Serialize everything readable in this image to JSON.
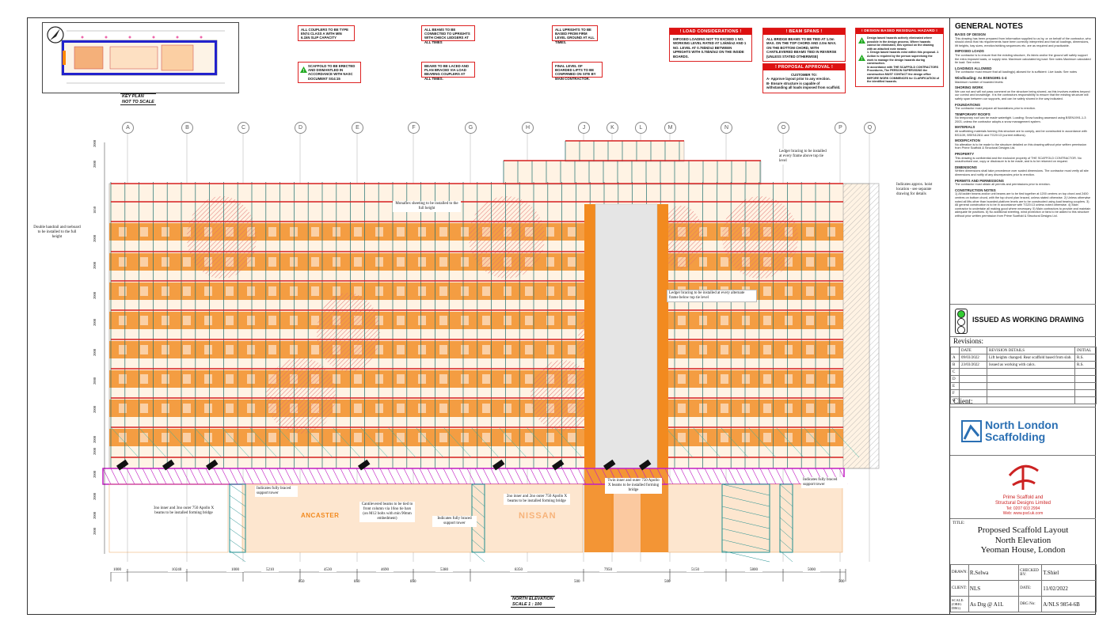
{
  "key_plan": {
    "label1": "KEY PLAN",
    "label2": "NOT TO SCALE"
  },
  "notes_red": [
    "ALL COUPLERS TO BE TYPE EN74 CLASS A WITH MIN 6.1kN SLIP CAPACITY",
    "ALL BEAMS TO BE CONNECTED TO UPRIGHTS WITH CHECK LEDGERS AT ALL TIMES",
    "ALL UPRIGHTS TO BE BASED FROM FIRM LEVEL GROUND AT ALL TIMES.",
    "BEAMS TO BE LACED AND PLAN BRACED VIA LOAD BEARING COUPLERS AT ALL TIMES.",
    "FINAL LEVEL OF BOARDED LIFTS TO BE CONFIRMED ON SITE BY MAIN CONTRACTOR."
  ],
  "note_naasc": "SCAFFOLD TO BE ERECTED AND DISMANTLED IN ACCORDANCE WITH NASC DOCUMENT SG4:15",
  "load": {
    "title": "! LOAD CONSIDERATIONS !",
    "body": "IMPOSED LOADING NOT TO EXCEED 1 NO. WORKING LEVEL RATED AT 1.5kN/m2 AND 1 NO. LEVEL AT 0.75kN/m2 BETWEEN UPRIGHTS WITH 0.75kN/m2 ON THE INSIDE BOARDS."
  },
  "beam": {
    "title": "! BEAM SPANS !",
    "body": "ALL BRIDGE BEAMS TO BE TIED AT 1.0m MAX. ON THE TOP CHORD AND 2.0m MAX. ON THE BOTTOM CHORD, WITH CANTILEVERED BEAMS TIED IN REVERSE (UNLESS STATED OTHERWISE)"
  },
  "approval": {
    "title": "! PROPOSAL APPROVAL !",
    "customer": "CUSTOMER TO:",
    "a": "A-  Approve layout prior to any erection.",
    "b": "B-  Ensure structure is capable of withstanding all loads imposed from scaffold."
  },
  "hazard": {
    "title": "! DESIGN BASED RESIDUAL HAZARD !",
    "p1": "Design based hazards actively eliminated where possible in the design process. Where hazards cannot be eliminated, this symbol on the drawing with an attached note means:",
    "p2": "1. Design based hazards exist within this proposal. 2. Action is required by the person supervising the work to manage the design hazards during construction.",
    "p3": "In accordance with THE SCAFFOLD CONTRACTORS Procedures, The PERSON SUPERVISING the construction MUST CONTACT the design office BEFORE WORK COMMENCES for CLARIFICATION of the identified hazards."
  },
  "grid": [
    "A",
    "B",
    "C",
    "D",
    "E",
    "F",
    "G",
    "H",
    "J",
    "K",
    "L",
    "M",
    "N",
    "O",
    "P",
    "Q"
  ],
  "dims": [
    "1000",
    "10240",
    "1000",
    "5210",
    "4530",
    "4690",
    "5380",
    "8350",
    "7950",
    "5150",
    "5800",
    "5000"
  ],
  "subdims": [
    "850",
    "850",
    "850",
    "500",
    "500",
    "500"
  ],
  "lift_heights": [
    "2000",
    "2000",
    "1850",
    "2000",
    "2000",
    "2000",
    "2000",
    "2000",
    "2000",
    "2000",
    "2000",
    "2000",
    "2000",
    "2000",
    "2000",
    "2000"
  ],
  "beam_tags": [
    "PR",
    "PR",
    "PR",
    "PR",
    "PR",
    "PR",
    "PR",
    "PR"
  ],
  "shop": {
    "ancaster": "ANCASTER",
    "nissan": "NISSAN"
  },
  "annotations": {
    "ledger_top": "Ledger bracing to be installed at every frame above top tie level",
    "hoist": "Indicates approx. hoist location - see separate drawing for details",
    "monaflex": "Monaflex sheeting to be installed to the full height",
    "handrail": "Double handrail and toeboard to be installed to the full height",
    "ledger_mid": "Ledger bracing to be installed at every alternate frame below top tie level",
    "tower_left": "Indicates fully braced support tower",
    "beams_left": "3no inner and 3no outer 750 Apollo X beams to be installed forming bridge",
    "cantilever": "Cantilevered beams to be tied to front column via 16no tie bars (on M12 bolts with min 90mm embedment)",
    "tower_mid": "Indicates fully braced support tower",
    "beams_mid": "2no inner and 2no outer 750 Apollo X beams to be installed forming bridge",
    "beams_twin": "Twin inner and outer 750 Apollo X beams to be installed forming bridge",
    "tower_right": "Indicates fully braced support tower"
  },
  "elev_title": "NORTH ELEVATION",
  "elev_scale": "SCALE  1 : 100",
  "general_notes": {
    "title": "GENERAL NOTES",
    "sections": [
      {
        "h": "BASIS OF DESIGN",
        "t": "This drawing has been prepared from information supplied to us by, or on behalf of the contractor, who should check that his requirements have been correctly interpreted and that all loadings, dimensions, lift heights, bay sizes, erection/striking sequences etc. are as required and practicable."
      },
      {
        "h": "IMPOSED LOADS",
        "t": "The contractor is to ensure that the existing structure, it's fabric and/or the ground will safely support the extra imposed loads, or supply new. Maximum calculated leg load:  See notes   Maximum calculated tie load:  See notes"
      },
      {
        "h": "LOADINGS ALLOWED",
        "t": "The contractor must ensure that all loading(s) allowed for is sufficient: Live loads:  See notes"
      },
      {
        "h": "Windloading: As BSEN1991-1-4",
        "t": "Maximum number of boarded levels:"
      },
      {
        "h": "SHORING WORK",
        "t": "We can not and will not pass comment on the structure being shored, as this involves matters beyond our control and knowledge. It is the contractors responsibility to ensure that the existing structure will safely span between our supports, and can be safely shored in the way indicated."
      },
      {
        "h": "FOUNDATIONS",
        "t": "The contractor must prepare all foundations prior to erection."
      },
      {
        "h": "TEMPORARY ROOFS",
        "t": "No temporary roof can be made watertight. Loading: Snow loading assessed using BSEN1991-1-3 2003, unless the contractor adopts a snow management system."
      },
      {
        "h": "MATERIALS",
        "t": "All scaffolding materials forming this structure are to comply, and be constructed in accordance with BS1139, BSEN12811 and TG20:13 (current editions)."
      },
      {
        "h": "MODIFICATION",
        "t": "No alteration is to be made to the structure detailed on this drawing without prior written permission from Prime Scaffold & Structural Designs Ltd."
      },
      {
        "h": "PROPERTY",
        "t": "This drawing is confidential and the exclusive property of THE SCAFFOLD CONTRACTOR. No unauthorised use, copy or disclosure is to be made, and is to be returned on request."
      },
      {
        "h": "DIMENSIONS",
        "t": "Written dimensions shall take precedence over scaled dimensions. The contractor must verify all site dimensions and notify of any discrepancies prior to erection."
      },
      {
        "h": "PERMITS AND PERMISSIONS",
        "t": "The contractor must obtain all permits and permissions prior to erection."
      },
      {
        "h": "CONSTRUCTION NOTES",
        "t": "1) All ladder beams and/or unit beams are to be tied together at 1200 centres on top chord and 2400 centres on bottom chord, with the top chord plan braced, unless stated otherwise. 2) Unless otherwise noted all lifts other than boarded platform levels are to be constructed using load bearing couplers. 3) All general construction is to be in accordance with TG20:13 unless noted otherwise. 4) Main contractor to undertake all making good where necessary. 5) Main contractors to provide and maintain adequate tie positions. 6) No additional sheeting, wind protection or fans to be added to this structure without prior written permission from Prime Scaffold & Structural Designs Ltd."
      }
    ]
  },
  "status": "ISSUED AS WORKING DRAWING",
  "revisions": {
    "title": "Revisions:",
    "headers": [
      "",
      "DATE",
      "REVISION DETAILS",
      "INITIAL"
    ],
    "rows": [
      [
        "A",
        "09/03/2022",
        "Lift heights changed. Rear scaffold based from slab.",
        "R.S."
      ],
      [
        "B",
        "23/03/2022",
        "Issued as working with calcs.",
        "R.S."
      ],
      [
        "C",
        "",
        "",
        ""
      ],
      [
        "D",
        "",
        "",
        ""
      ],
      [
        "E",
        "",
        "",
        ""
      ],
      [
        "F",
        "",
        "",
        ""
      ],
      [
        "G",
        "",
        "",
        ""
      ]
    ]
  },
  "client_label": "Client:",
  "client_logo": {
    "line1": "North London",
    "line2": "Scaffolding"
  },
  "designer": {
    "name1": "Prime Scaffold and",
    "name2": "Structural Designs Limited",
    "tel": "Tel: 0207 603 2994",
    "web": "Web: www.psd.uk.com"
  },
  "title_block": {
    "title_label": "TITLE:",
    "title1": "Proposed Scaffold Layout",
    "title2": "North Elevation",
    "title3": "Yeoman House, London",
    "drawn_label": "DRAWN:",
    "drawn": "R.Selwa",
    "checked_label": "CHECKED BY:",
    "checked": "T.Shiel",
    "client_label": "CLIENT:",
    "client": "NLS",
    "date_label": "DATE:",
    "date": "11/02/2022",
    "scale_label": "SCALE: (ORIG DRG)",
    "scale": "As Drg @ A1L",
    "drg_label": "DRG No:",
    "drg": "A/NLS 9854-6B"
  },
  "colors": {
    "orange": "#f28a1f",
    "red": "#d61f1f",
    "magenta": "#c21fc2",
    "teal": "#1f8f8f",
    "hatch": "#e47a7a"
  }
}
